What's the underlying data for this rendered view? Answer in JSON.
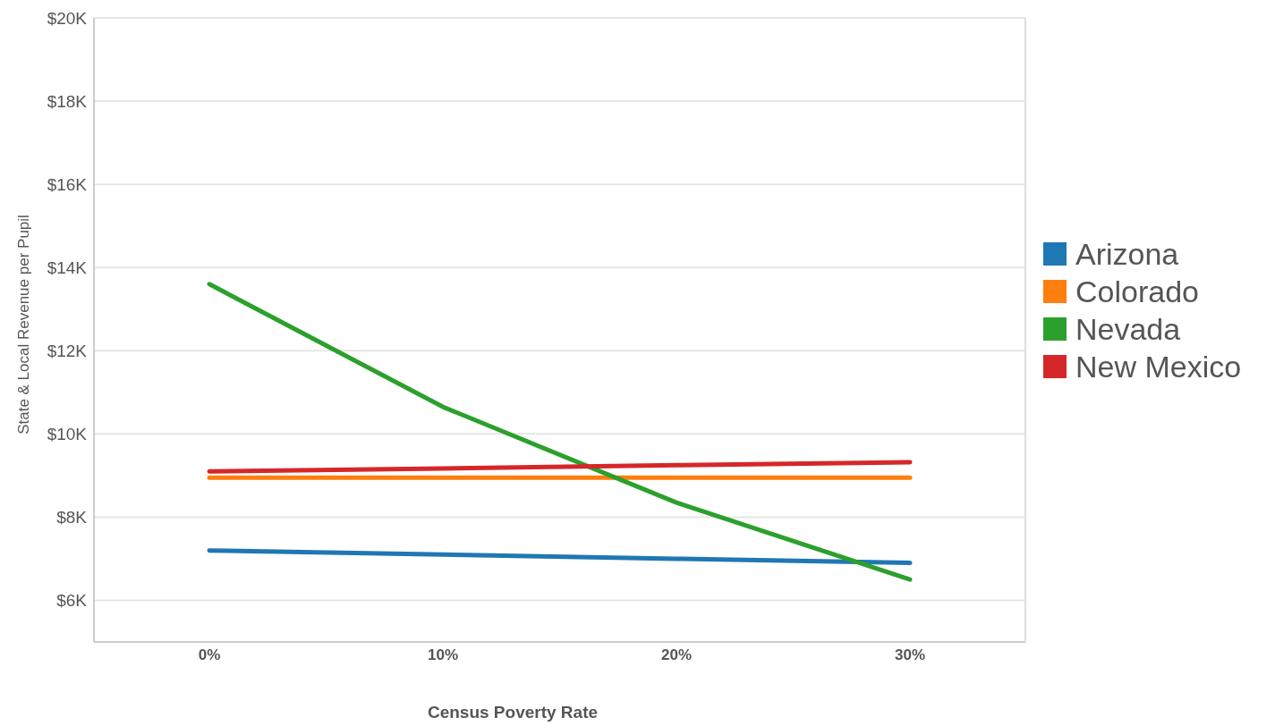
{
  "chart_data": {
    "type": "line",
    "xlabel": "Census Poverty Rate",
    "ylabel": "State & Local Revenue per Pupil",
    "categories": [
      "0%",
      "10%",
      "20%",
      "30%"
    ],
    "series": [
      {
        "name": "Arizona",
        "color": "#1f77b4",
        "values": [
          7200,
          7100,
          7000,
          6900
        ]
      },
      {
        "name": "Colorado",
        "color": "#ff7f0e",
        "values": [
          8950,
          8950,
          8950,
          8950
        ]
      },
      {
        "name": "Nevada",
        "color": "#2ca02c",
        "values": [
          13600,
          10650,
          8350,
          6500
        ]
      },
      {
        "name": "New Mexico",
        "color": "#d62728",
        "values": [
          9100,
          9170,
          9250,
          9320
        ]
      }
    ],
    "ylim": [
      5000,
      20000
    ],
    "yticks": [
      {
        "value": 6000,
        "label": "$6K"
      },
      {
        "value": 8000,
        "label": "$8K"
      },
      {
        "value": 10000,
        "label": "$10K"
      },
      {
        "value": 12000,
        "label": "$12K"
      },
      {
        "value": 14000,
        "label": "$14K"
      },
      {
        "value": 16000,
        "label": "$16K"
      },
      {
        "value": 18000,
        "label": "$18K"
      },
      {
        "value": 20000,
        "label": "$20K"
      }
    ],
    "grid": "y",
    "legend": "right",
    "marker": "none",
    "line_style": "solid"
  }
}
